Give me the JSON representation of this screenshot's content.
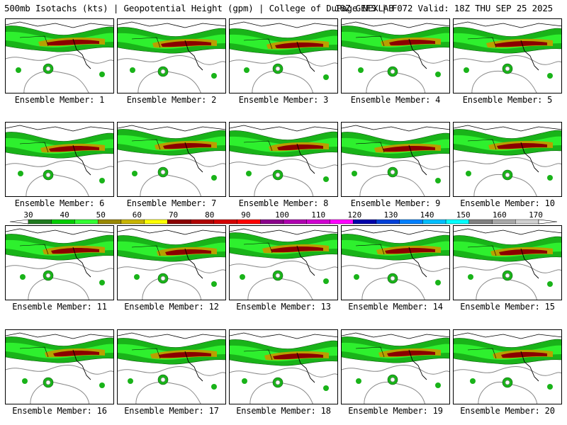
{
  "header": {
    "left": "500mb Isotachs (kts) | Geopotential Height (gpm) | College of DuPage NEXLAB",
    "right": "18Z GEFS | F072 Valid: 18Z THU SEP 25 2025"
  },
  "members": [
    "Ensemble Member: 1",
    "Ensemble Member: 2",
    "Ensemble Member: 3",
    "Ensemble Member: 4",
    "Ensemble Member: 5",
    "Ensemble Member: 6",
    "Ensemble Member: 7",
    "Ensemble Member: 8",
    "Ensemble Member: 9",
    "Ensemble Member: 10",
    "Ensemble Member: 11",
    "Ensemble Member: 12",
    "Ensemble Member: 13",
    "Ensemble Member: 14",
    "Ensemble Member: 15",
    "Ensemble Member: 16",
    "Ensemble Member: 17",
    "Ensemble Member: 18",
    "Ensemble Member: 19",
    "Ensemble Member: 20"
  ],
  "colorbar": {
    "ticks": [
      "30",
      "40",
      "50",
      "60",
      "70",
      "80",
      "90",
      "100",
      "110",
      "120",
      "130",
      "140",
      "150",
      "160",
      "170"
    ],
    "colors": [
      "#1f7a1f",
      "#00cc00",
      "#33ff33",
      "#998800",
      "#c8b400",
      "#ffff00",
      "#8b0000",
      "#b00000",
      "#d40000",
      "#ff0000",
      "#8b008b",
      "#b000b0",
      "#d000d0",
      "#ff00ff",
      "#0000aa",
      "#0040d8",
      "#0080ff",
      "#00bfff",
      "#00ffff",
      "#808080",
      "#a8a8a8",
      "#d0d0d0"
    ]
  }
}
